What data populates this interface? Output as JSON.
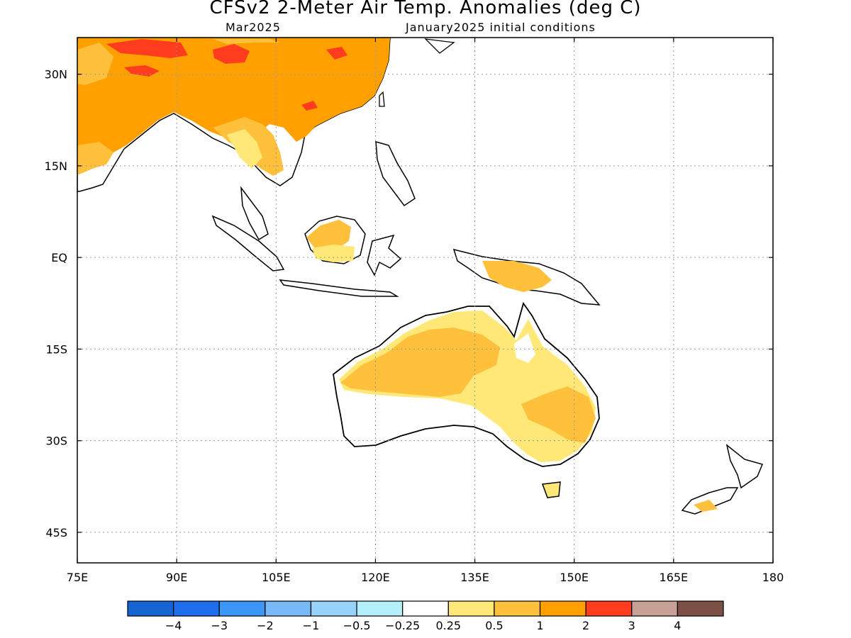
{
  "header": {
    "title": "CFSv2 2-Meter Air Temp. Anomalies (deg C)",
    "month": "Mar2025",
    "init": "January2025 initial conditions"
  },
  "map": {
    "lon_range": [
      75,
      180
    ],
    "lat_range": [
      -50,
      36
    ],
    "lat_ticks": [
      {
        "value": 30,
        "label": "30N"
      },
      {
        "value": 15,
        "label": "15N"
      },
      {
        "value": 0,
        "label": "EQ"
      },
      {
        "value": -15,
        "label": "15S"
      },
      {
        "value": -30,
        "label": "30S"
      },
      {
        "value": -45,
        "label": "45S"
      }
    ],
    "lon_ticks": [
      {
        "value": 75,
        "label": "75E"
      },
      {
        "value": 90,
        "label": "90E"
      },
      {
        "value": 105,
        "label": "105E"
      },
      {
        "value": 120,
        "label": "120E"
      },
      {
        "value": 135,
        "label": "135E"
      },
      {
        "value": 150,
        "label": "150E"
      },
      {
        "value": 165,
        "label": "165E"
      },
      {
        "value": 180,
        "label": "180"
      }
    ],
    "grid": true
  },
  "colorbar": {
    "colors": [
      "#1464d2",
      "#1e6eeb",
      "#3c96f5",
      "#78b9fa",
      "#96d2fa",
      "#b4f0fa",
      "#ffffff",
      "#ffe878",
      "#ffc03c",
      "#ffa000",
      "#ff3c1e",
      "#c8a096",
      "#7d5046"
    ],
    "labels": [
      "−4",
      "−3",
      "−2",
      "−1",
      "−0.5",
      "−0.25",
      "0.25",
      "0.5",
      "1",
      "2",
      "3",
      "4"
    ]
  }
}
